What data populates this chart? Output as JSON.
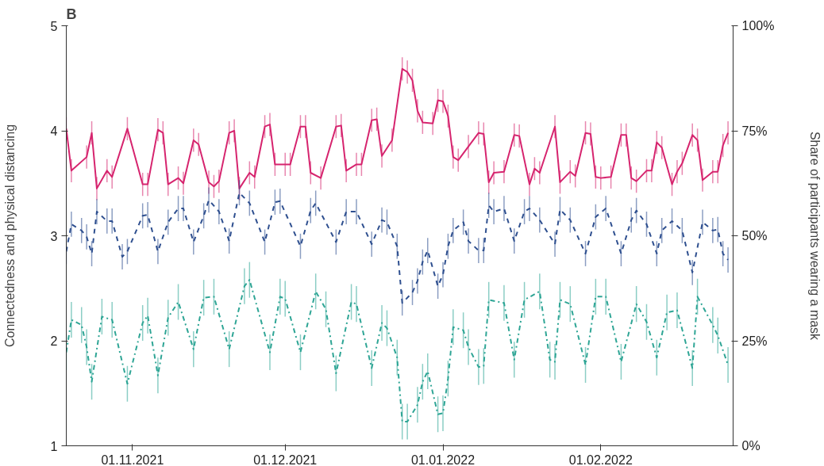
{
  "chart_data": {
    "type": "line",
    "title": "B",
    "ylabel": "Connectedness and physical distancing",
    "y2label": "Share of participants wearing a mask",
    "xlim": [
      "2021-10-19",
      "2022-02-27"
    ],
    "xticks": [
      {
        "value": "2021-11-01",
        "label": "01.11.2021"
      },
      {
        "value": "2021-12-01",
        "label": "01.12.2021"
      },
      {
        "value": "2022-01-01",
        "label": "01.01.2022"
      },
      {
        "value": "2022-02-01",
        "label": "01.02.2022"
      }
    ],
    "ylim": [
      1,
      5
    ],
    "yticks": [
      1,
      2,
      3,
      4,
      5
    ],
    "y2lim": [
      0,
      100
    ],
    "y2ticks": [
      {
        "value": 0,
        "label": "0%"
      },
      {
        "value": 25,
        "label": "25%"
      },
      {
        "value": 50,
        "label": "50%"
      },
      {
        "value": 75,
        "label": "75%"
      },
      {
        "value": 100,
        "label": "100%"
      }
    ],
    "grid": false,
    "marker": "none",
    "series": [
      {
        "color": "#d6246e",
        "line_style": "solid",
        "x": [
          "2021-10-19",
          "2021-10-20",
          "2021-10-23",
          "2021-10-24",
          "2021-10-25",
          "2021-10-27",
          "2021-10-28",
          "2021-10-31",
          "2021-11-03",
          "2021-11-04",
          "2021-11-06",
          "2021-11-07",
          "2021-11-08",
          "2021-11-10",
          "2021-11-11",
          "2021-11-13",
          "2021-11-14",
          "2021-11-16",
          "2021-11-17",
          "2021-11-18",
          "2021-11-20",
          "2021-11-21",
          "2021-11-22",
          "2021-11-24",
          "2021-11-25",
          "2021-11-27",
          "2021-11-28",
          "2021-11-29",
          "2021-12-01",
          "2021-12-02",
          "2021-12-04",
          "2021-12-05",
          "2021-12-06",
          "2021-12-08",
          "2021-12-11",
          "2021-12-12",
          "2021-12-13",
          "2021-12-15",
          "2021-12-16",
          "2021-12-18",
          "2021-12-19",
          "2021-12-20",
          "2021-12-22",
          "2021-12-24",
          "2021-12-25",
          "2021-12-26",
          "2021-12-27",
          "2021-12-28",
          "2021-12-30",
          "2021-12-31",
          "2022-01-01",
          "2022-01-02",
          "2022-01-03",
          "2022-01-04",
          "2022-01-06",
          "2022-01-08",
          "2022-01-09",
          "2022-01-10",
          "2022-01-11",
          "2022-01-13",
          "2022-01-15",
          "2022-01-16",
          "2022-01-18",
          "2022-01-19",
          "2022-01-20",
          "2022-01-23",
          "2022-01-24",
          "2022-01-26",
          "2022-01-27",
          "2022-01-29",
          "2022-01-30",
          "2022-01-31",
          "2022-02-01",
          "2022-02-03",
          "2022-02-05",
          "2022-02-06",
          "2022-02-07",
          "2022-02-08",
          "2022-02-10",
          "2022-02-11",
          "2022-02-12",
          "2022-02-13",
          "2022-02-15",
          "2022-02-16",
          "2022-02-17",
          "2022-02-19",
          "2022-02-20",
          "2022-02-21",
          "2022-02-23",
          "2022-02-24",
          "2022-02-25",
          "2022-02-26"
        ],
        "values": [
          4.02,
          3.62,
          3.75,
          3.98,
          3.45,
          3.62,
          3.56,
          4.02,
          3.49,
          3.49,
          4.01,
          3.98,
          3.49,
          3.55,
          3.5,
          3.91,
          3.87,
          3.51,
          3.47,
          3.52,
          3.98,
          4.0,
          3.45,
          3.6,
          3.56,
          4.04,
          4.06,
          3.68,
          3.68,
          3.68,
          4.04,
          4.04,
          3.6,
          3.55,
          4.04,
          4.05,
          3.62,
          3.68,
          3.68,
          4.1,
          4.11,
          3.76,
          3.91,
          4.59,
          4.56,
          4.48,
          4.19,
          4.08,
          4.07,
          4.29,
          4.28,
          4.14,
          3.75,
          3.72,
          3.85,
          3.98,
          3.97,
          3.51,
          3.6,
          3.61,
          3.96,
          3.95,
          3.49,
          3.64,
          3.6,
          4.04,
          3.51,
          3.61,
          3.57,
          3.98,
          3.97,
          3.56,
          3.55,
          3.56,
          3.96,
          3.96,
          3.55,
          3.52,
          3.62,
          3.62,
          3.89,
          3.84,
          3.49,
          3.61,
          3.69,
          3.96,
          3.91,
          3.53,
          3.61,
          3.61,
          3.86,
          3.98
        ],
        "errors": [
          0.11,
          0.11,
          0.11,
          0.11,
          0.11,
          0.11,
          0.11,
          0.11,
          0.11,
          0.11,
          0.11,
          0.11,
          0.11,
          0.11,
          0.11,
          0.11,
          0.11,
          0.11,
          0.11,
          0.11,
          0.11,
          0.11,
          0.11,
          0.11,
          0.11,
          0.11,
          0.11,
          0.11,
          0.11,
          0.11,
          0.11,
          0.11,
          0.11,
          0.11,
          0.11,
          0.11,
          0.11,
          0.11,
          0.11,
          0.11,
          0.11,
          0.11,
          0.11,
          0.11,
          0.11,
          0.11,
          0.11,
          0.11,
          0.11,
          0.11,
          0.11,
          0.11,
          0.11,
          0.11,
          0.11,
          0.11,
          0.11,
          0.11,
          0.11,
          0.11,
          0.11,
          0.11,
          0.11,
          0.11,
          0.11,
          0.11,
          0.11,
          0.11,
          0.11,
          0.11,
          0.11,
          0.11,
          0.11,
          0.11,
          0.11,
          0.11,
          0.11,
          0.11,
          0.11,
          0.11,
          0.11,
          0.11,
          0.11,
          0.11,
          0.11,
          0.11,
          0.11,
          0.11,
          0.11,
          0.11,
          0.11,
          0.11
        ]
      },
      {
        "color": "#2e4f8f",
        "line_style": "dashed",
        "x": [
          "2021-10-19",
          "2021-10-20",
          "2021-10-22",
          "2021-10-23",
          "2021-10-24",
          "2021-10-25",
          "2021-10-27",
          "2021-10-28",
          "2021-10-30",
          "2021-10-31",
          "2021-11-03",
          "2021-11-04",
          "2021-11-06",
          "2021-11-08",
          "2021-11-10",
          "2021-11-11",
          "2021-11-13",
          "2021-11-15",
          "2021-11-16",
          "2021-11-18",
          "2021-11-20",
          "2021-11-22",
          "2021-11-24",
          "2021-11-27",
          "2021-11-29",
          "2021-11-30",
          "2021-12-04",
          "2021-12-06",
          "2021-12-07",
          "2021-12-11",
          "2021-12-13",
          "2021-12-15",
          "2021-12-18",
          "2021-12-20",
          "2021-12-21",
          "2021-12-23",
          "2021-12-24",
          "2021-12-26",
          "2021-12-27",
          "2021-12-28",
          "2021-12-29",
          "2021-12-31",
          "2022-01-01",
          "2022-01-02",
          "2022-01-03",
          "2022-01-05",
          "2022-01-06",
          "2022-01-08",
          "2022-01-09",
          "2022-01-10",
          "2022-01-11",
          "2022-01-13",
          "2022-01-15",
          "2022-01-17",
          "2022-01-18",
          "2022-01-20",
          "2022-01-23",
          "2022-01-24",
          "2022-01-26",
          "2022-01-29",
          "2022-01-31",
          "2022-02-02",
          "2022-02-05",
          "2022-02-07",
          "2022-02-08",
          "2022-02-10",
          "2022-02-12",
          "2022-02-13",
          "2022-02-15",
          "2022-02-17",
          "2022-02-19",
          "2022-02-21",
          "2022-02-23",
          "2022-02-24",
          "2022-02-25",
          "2022-02-26"
        ],
        "values": [
          2.85,
          3.11,
          3.05,
          2.99,
          2.83,
          3.23,
          3.14,
          3.14,
          2.8,
          2.85,
          3.19,
          3.2,
          2.85,
          3.13,
          3.26,
          3.26,
          2.94,
          3.19,
          3.34,
          3.23,
          2.95,
          3.41,
          3.31,
          2.94,
          3.32,
          3.33,
          2.9,
          3.24,
          3.31,
          2.94,
          3.23,
          3.23,
          2.92,
          3.15,
          3.13,
          2.9,
          2.36,
          2.46,
          2.57,
          2.75,
          2.86,
          2.52,
          2.63,
          2.9,
          3.05,
          3.13,
          2.95,
          2.86,
          2.86,
          3.29,
          3.23,
          3.26,
          2.95,
          3.23,
          3.26,
          3.15,
          2.92,
          3.25,
          3.15,
          2.83,
          3.18,
          3.26,
          2.83,
          3.15,
          3.24,
          3.11,
          2.83,
          3.05,
          3.14,
          3.05,
          2.65,
          3.13,
          3.05,
          3.06,
          2.83,
          2.77
        ],
        "errors": [
          0.12,
          0.12,
          0.12,
          0.12,
          0.12,
          0.12,
          0.12,
          0.12,
          0.12,
          0.12,
          0.12,
          0.12,
          0.12,
          0.12,
          0.12,
          0.12,
          0.12,
          0.12,
          0.12,
          0.12,
          0.12,
          0.12,
          0.12,
          0.12,
          0.12,
          0.12,
          0.12,
          0.12,
          0.12,
          0.12,
          0.12,
          0.12,
          0.12,
          0.12,
          0.12,
          0.12,
          0.12,
          0.12,
          0.12,
          0.12,
          0.12,
          0.12,
          0.12,
          0.12,
          0.12,
          0.12,
          0.12,
          0.12,
          0.12,
          0.12,
          0.12,
          0.12,
          0.12,
          0.12,
          0.12,
          0.12,
          0.12,
          0.12,
          0.12,
          0.12,
          0.12,
          0.12,
          0.12,
          0.12,
          0.12,
          0.12,
          0.12,
          0.12,
          0.12,
          0.12,
          0.12,
          0.12,
          0.12,
          0.12,
          0.12,
          0.12
        ]
      },
      {
        "color": "#2ea595",
        "line_style": "dashdot",
        "x": [
          "2021-10-19",
          "2021-10-20",
          "2021-10-22",
          "2021-10-23",
          "2021-10-24",
          "2021-10-26",
          "2021-10-28",
          "2021-10-31",
          "2021-11-03",
          "2021-11-04",
          "2021-11-06",
          "2021-11-08",
          "2021-11-10",
          "2021-11-13",
          "2021-11-15",
          "2021-11-17",
          "2021-11-20",
          "2021-11-23",
          "2021-11-24",
          "2021-11-28",
          "2021-11-30",
          "2021-12-01",
          "2021-12-04",
          "2021-12-07",
          "2021-12-09",
          "2021-12-11",
          "2021-12-14",
          "2021-12-15",
          "2021-12-18",
          "2021-12-20",
          "2021-12-21",
          "2021-12-23",
          "2021-12-24",
          "2021-12-25",
          "2021-12-27",
          "2021-12-28",
          "2021-12-29",
          "2021-12-31",
          "2022-01-01",
          "2022-01-02",
          "2022-01-03",
          "2022-01-05",
          "2022-01-06",
          "2022-01-08",
          "2022-01-09",
          "2022-01-10",
          "2022-01-13",
          "2022-01-15",
          "2022-01-17",
          "2022-01-20",
          "2022-01-22",
          "2022-01-23",
          "2022-01-24",
          "2022-01-26",
          "2022-01-29",
          "2022-01-31",
          "2022-02-02",
          "2022-02-05",
          "2022-02-08",
          "2022-02-10",
          "2022-02-12",
          "2022-02-14",
          "2022-02-16",
          "2022-02-19",
          "2022-02-20",
          "2022-02-23",
          "2022-02-24",
          "2022-02-26"
        ],
        "values": [
          1.89,
          2.2,
          2.15,
          1.94,
          1.61,
          2.23,
          2.2,
          1.59,
          2.17,
          2.24,
          1.67,
          2.22,
          2.37,
          1.92,
          2.41,
          2.42,
          1.92,
          2.52,
          2.58,
          1.89,
          2.42,
          2.4,
          1.89,
          2.47,
          2.3,
          1.69,
          2.37,
          2.35,
          1.74,
          2.17,
          2.12,
          1.84,
          1.23,
          1.23,
          1.39,
          1.61,
          1.71,
          1.3,
          1.31,
          1.64,
          2.13,
          2.1,
          1.94,
          1.75,
          1.76,
          2.39,
          2.36,
          1.82,
          2.39,
          2.47,
          1.82,
          1.8,
          2.39,
          2.35,
          1.77,
          2.42,
          2.42,
          1.8,
          2.35,
          2.18,
          1.84,
          2.27,
          2.29,
          1.74,
          2.42,
          2.15,
          2.05,
          1.77
        ],
        "errors": [
          0.17,
          0.17,
          0.17,
          0.17,
          0.17,
          0.17,
          0.17,
          0.17,
          0.17,
          0.17,
          0.17,
          0.17,
          0.17,
          0.17,
          0.17,
          0.17,
          0.17,
          0.17,
          0.17,
          0.17,
          0.17,
          0.17,
          0.17,
          0.17,
          0.17,
          0.17,
          0.17,
          0.17,
          0.17,
          0.17,
          0.17,
          0.17,
          0.17,
          0.17,
          0.17,
          0.17,
          0.17,
          0.17,
          0.17,
          0.17,
          0.17,
          0.17,
          0.17,
          0.17,
          0.17,
          0.17,
          0.17,
          0.17,
          0.17,
          0.17,
          0.17,
          0.17,
          0.17,
          0.17,
          0.17,
          0.17,
          0.17,
          0.17,
          0.17,
          0.17,
          0.17,
          0.17,
          0.17,
          0.17,
          0.17,
          0.17,
          0.17,
          0.17
        ]
      }
    ]
  }
}
